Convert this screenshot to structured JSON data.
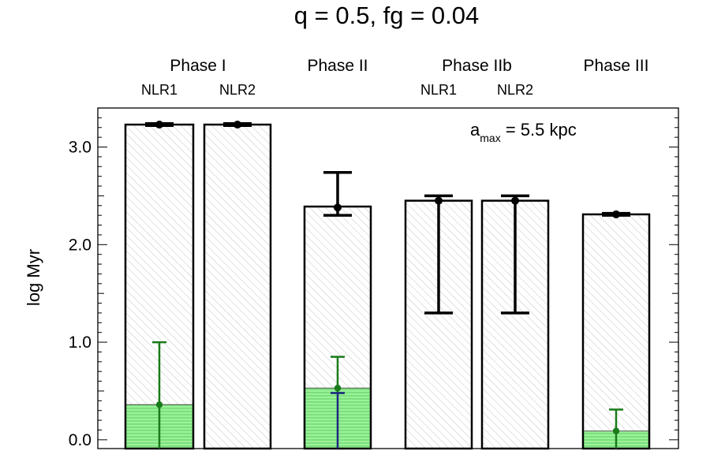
{
  "chart_data": {
    "type": "bar",
    "title": "q = 0.5, fg = 0.04",
    "ylabel": "log Myr",
    "xlabel": "",
    "ylim": [
      -0.09,
      3.4
    ],
    "yticks": [
      "0.0",
      "1.0",
      "2.0",
      "3.0"
    ],
    "grid": false,
    "annotation": {
      "text": "a",
      "sub": "max",
      "rest": " = 5.5 kpc"
    },
    "phases": [
      {
        "name": "Phase I",
        "sublabels": [
          "NLR1",
          "NLR2"
        ]
      },
      {
        "name": "Phase II",
        "sublabels": []
      },
      {
        "name": "Phase IIb",
        "sublabels": [
          "NLR1",
          "NLR2"
        ]
      },
      {
        "name": "Phase III",
        "sublabels": []
      }
    ],
    "categories": [
      "Phase I NLR1",
      "Phase I NLR2",
      "Phase II",
      "Phase IIb NLR1",
      "Phase IIb NLR2",
      "Phase III"
    ],
    "series": [
      {
        "values": [
          3.23,
          3.23,
          2.39,
          2.45,
          2.45,
          2.31
        ],
        "point": [
          3.23,
          3.23,
          2.38,
          2.45,
          2.45,
          2.31
        ],
        "err_low": [
          3.22,
          3.22,
          2.3,
          1.3,
          1.3,
          2.3
        ],
        "err_high": [
          3.24,
          3.24,
          2.74,
          2.5,
          2.5,
          2.32
        ],
        "color": "#000000"
      },
      {
        "values": [
          0.36,
          null,
          0.53,
          null,
          null,
          0.09
        ],
        "point": [
          0.36,
          null,
          0.53,
          null,
          null,
          0.09
        ],
        "err_low": [
          -0.09,
          null,
          0.48,
          null,
          null,
          -0.09
        ],
        "err_high": [
          1.0,
          null,
          0.85,
          null,
          null,
          0.31
        ],
        "color": "#1a7a1a"
      },
      {
        "values": [
          null,
          null,
          0.48,
          null,
          null,
          null
        ],
        "err_low": [
          null,
          null,
          -0.09,
          null,
          null,
          null
        ],
        "err_high": [
          null,
          null,
          0.48,
          null,
          null,
          null
        ],
        "color": "#1c2a80"
      }
    ],
    "colors": {
      "green_fill": "#8ef08e",
      "hatch_gray": "#bfbfbf",
      "green_hatch": "#6fd86f"
    }
  }
}
